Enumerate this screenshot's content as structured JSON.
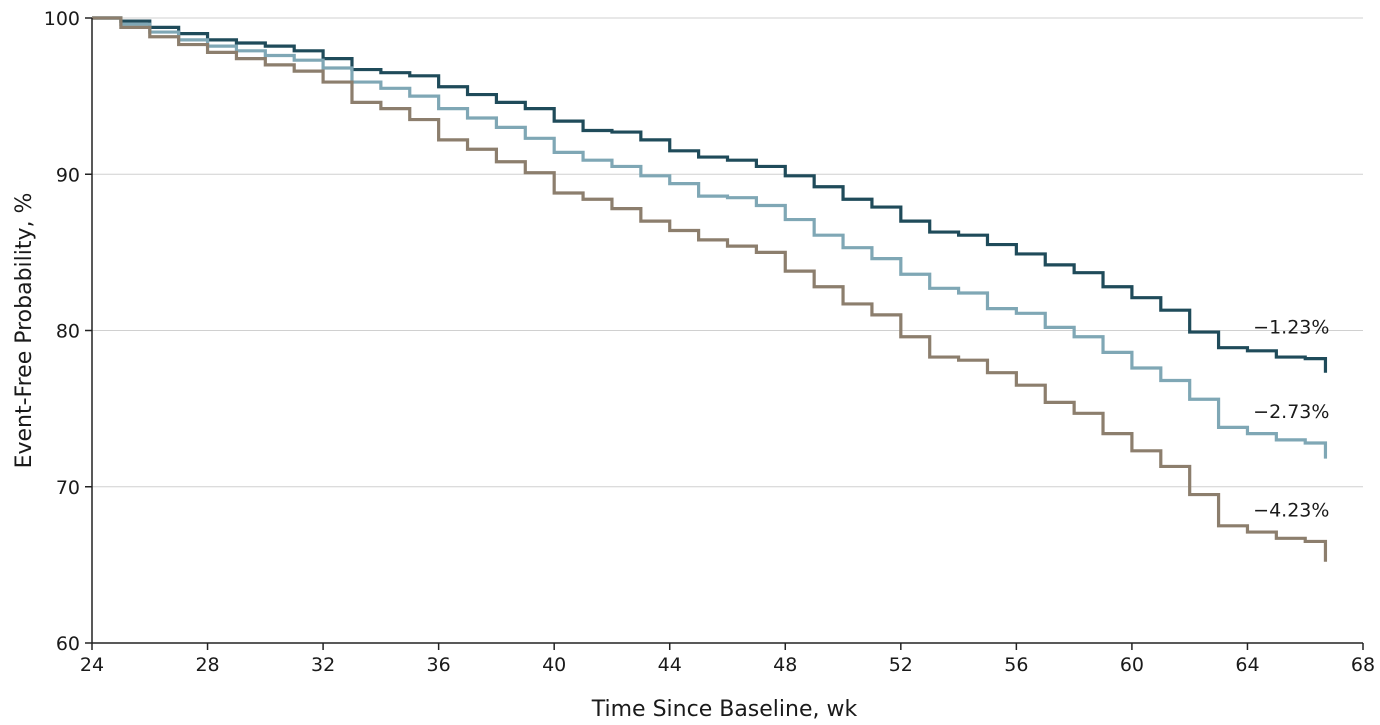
{
  "chart_data": {
    "type": "line",
    "step": true,
    "title": "",
    "xlabel": "Time Since Baseline, wk",
    "ylabel": "Event-Free Probability, %",
    "xlim": [
      24,
      68
    ],
    "ylim": [
      60,
      100
    ],
    "xticks": [
      24,
      28,
      32,
      36,
      40,
      44,
      48,
      52,
      56,
      60,
      64,
      68
    ],
    "xtick_labels": [
      "24",
      "28",
      "32",
      "36",
      "40",
      "44",
      "48",
      "52",
      "56",
      "60",
      "64",
      "68"
    ],
    "yticks": [
      60,
      70,
      80,
      90,
      100
    ],
    "ytick_labels": [
      "60",
      "70",
      "80",
      "90",
      "100"
    ],
    "grid": "horizontal",
    "series": [
      {
        "end_label": "−1.23%",
        "color": "#1f4b5a",
        "x": [
          24,
          25,
          26,
          27,
          28,
          29,
          30,
          31,
          32,
          33,
          34,
          35,
          36,
          37,
          38,
          39,
          40,
          41,
          42,
          43,
          44,
          45,
          46,
          47,
          48,
          49,
          50,
          51,
          52,
          53,
          54,
          55,
          56,
          57,
          58,
          59,
          60,
          61,
          62,
          63,
          64,
          65,
          66,
          66.7
        ],
        "y": [
          100,
          99.8,
          99.4,
          99.0,
          98.6,
          98.4,
          98.2,
          97.9,
          97.4,
          96.7,
          96.5,
          96.3,
          95.6,
          95.1,
          94.6,
          94.2,
          93.4,
          92.8,
          92.7,
          92.2,
          91.5,
          91.1,
          90.9,
          90.5,
          89.9,
          89.2,
          88.4,
          87.9,
          87.0,
          86.3,
          86.1,
          85.5,
          84.9,
          84.2,
          83.7,
          82.8,
          82.1,
          81.3,
          79.9,
          78.9,
          78.7,
          78.3,
          78.2,
          77.3
        ]
      },
      {
        "end_label": "−2.73%",
        "color": "#7fa7b5",
        "x": [
          24,
          25,
          26,
          27,
          28,
          29,
          30,
          31,
          32,
          33,
          34,
          35,
          36,
          37,
          38,
          39,
          40,
          41,
          42,
          43,
          44,
          45,
          46,
          47,
          48,
          49,
          50,
          51,
          52,
          53,
          54,
          55,
          56,
          57,
          58,
          59,
          60,
          61,
          62,
          63,
          64,
          65,
          66,
          66.7
        ],
        "y": [
          100,
          99.6,
          99.1,
          98.6,
          98.2,
          97.9,
          97.6,
          97.3,
          96.8,
          95.9,
          95.5,
          95.0,
          94.2,
          93.6,
          93.0,
          92.3,
          91.4,
          90.9,
          90.5,
          89.9,
          89.4,
          88.6,
          88.5,
          88.0,
          87.1,
          86.1,
          85.3,
          84.6,
          83.6,
          82.7,
          82.4,
          81.4,
          81.1,
          80.2,
          79.6,
          78.6,
          77.6,
          76.8,
          75.6,
          73.8,
          73.4,
          73.0,
          72.8,
          71.8
        ]
      },
      {
        "end_label": "−4.23%",
        "color": "#8c7e6d",
        "x": [
          24,
          25,
          26,
          27,
          28,
          29,
          30,
          31,
          32,
          33,
          34,
          35,
          36,
          37,
          38,
          39,
          40,
          41,
          42,
          43,
          44,
          45,
          46,
          47,
          48,
          49,
          50,
          51,
          52,
          53,
          54,
          55,
          56,
          57,
          58,
          59,
          60,
          61,
          62,
          63,
          64,
          65,
          66,
          66.7
        ],
        "y": [
          100,
          99.4,
          98.8,
          98.3,
          97.8,
          97.4,
          97.0,
          96.6,
          95.9,
          94.6,
          94.2,
          93.5,
          92.2,
          91.6,
          90.8,
          90.1,
          88.8,
          88.4,
          87.8,
          87.0,
          86.4,
          85.8,
          85.4,
          85.0,
          83.8,
          82.8,
          81.7,
          81.0,
          79.6,
          78.3,
          78.1,
          77.3,
          76.5,
          75.4,
          74.7,
          73.4,
          72.3,
          71.3,
          69.5,
          67.5,
          67.1,
          66.7,
          66.5,
          65.2
        ]
      }
    ]
  }
}
